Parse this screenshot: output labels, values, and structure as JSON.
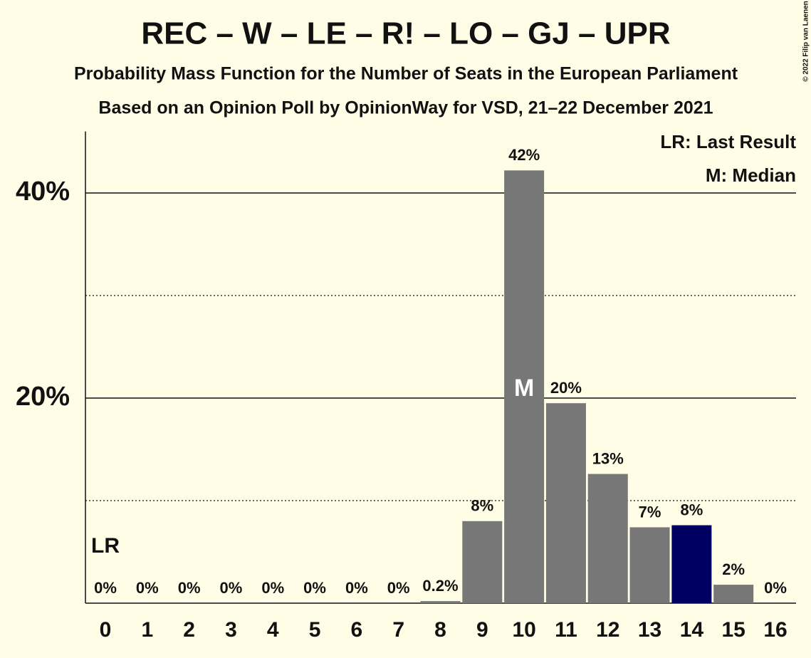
{
  "chart_data": {
    "type": "bar",
    "title": "REC – W – LE – R! – LO – GJ – UPR",
    "subtitles": [
      "Probability Mass Function for the Number of Seats in the European Parliament",
      "Based on an Opinion Poll by OpinionWay for VSD, 21–22 December 2021"
    ],
    "categories": [
      "0",
      "1",
      "2",
      "3",
      "4",
      "5",
      "6",
      "7",
      "8",
      "9",
      "10",
      "11",
      "12",
      "13",
      "14",
      "15",
      "16"
    ],
    "values": [
      0,
      0,
      0,
      0,
      0,
      0,
      0,
      0,
      0.2,
      8.0,
      42.2,
      19.5,
      12.6,
      7.4,
      7.6,
      1.8,
      0
    ],
    "value_labels": [
      "0%",
      "0%",
      "0%",
      "0%",
      "0%",
      "0%",
      "0%",
      "0%",
      "0.2%",
      "8%",
      "42%",
      "20%",
      "13%",
      "7%",
      "8%",
      "2%",
      "0%"
    ],
    "colors": [
      "#777777",
      "#777777",
      "#777777",
      "#777777",
      "#777777",
      "#777777",
      "#777777",
      "#777777",
      "#777777",
      "#777777",
      "#777777",
      "#777777",
      "#777777",
      "#777777",
      "#000060",
      "#777777",
      "#777777"
    ],
    "ylim": [
      0,
      46
    ],
    "yticks": [
      {
        "value": 20,
        "label": "20%"
      },
      {
        "value": 40,
        "label": "40%"
      }
    ],
    "yminor": [
      10,
      30
    ],
    "annotations": [
      {
        "text": "LR",
        "category": "0"
      },
      {
        "text": "M",
        "category": "10"
      }
    ],
    "legend": [
      "LR: Last Result",
      "M: Median"
    ],
    "credit": "© 2022 Filip van Laenen"
  }
}
